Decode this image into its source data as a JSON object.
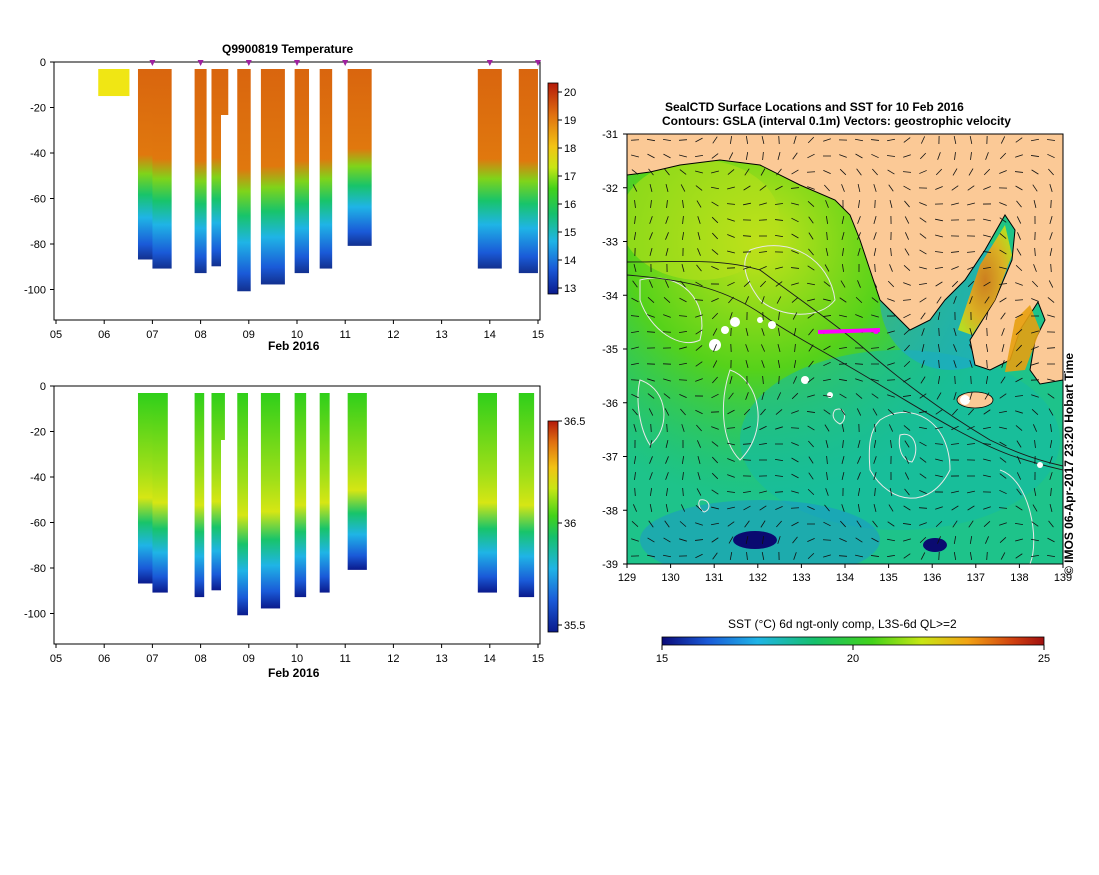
{
  "left_top": {
    "title": "Q9900819  Temperature",
    "xaxis_label": "Feb 2016",
    "x_ticks": [
      "05",
      "06",
      "07",
      "08",
      "09",
      "10",
      "11",
      "12",
      "13",
      "14",
      "15"
    ],
    "y_ticks": [
      "0",
      "-20",
      "-40",
      "-60",
      "-80",
      "-100"
    ],
    "colorbar_ticks": [
      "20",
      "19",
      "18",
      "17",
      "16",
      "15",
      "14",
      "13"
    ]
  },
  "left_bottom": {
    "title": "",
    "xaxis_label": "Feb 2016",
    "x_ticks": [
      "05",
      "06",
      "07",
      "08",
      "09",
      "10",
      "11",
      "12",
      "13",
      "14",
      "15"
    ],
    "y_ticks": [
      "0",
      "-20",
      "-40",
      "-60",
      "-80",
      "-100"
    ],
    "colorbar_ticks": [
      "36.5",
      "36",
      "35.5"
    ]
  },
  "map": {
    "title1": "SealCTD Surface Locations and SST for 10 Feb 2016",
    "title2": "Contours: GSLA (interval 0.1m) Vectors: geostrophic velocity",
    "x_ticks": [
      "129",
      "130",
      "131",
      "132",
      "133",
      "134",
      "135",
      "136",
      "137",
      "138",
      "139"
    ],
    "y_ticks": [
      "-31",
      "-32",
      "-33",
      "-34",
      "-35",
      "-36",
      "-37",
      "-38",
      "-39"
    ],
    "colorbar_label": "SST (°C) 6d ngt-only comp, L3S-6d QL>=2",
    "colorbar_ticks": [
      "15",
      "20",
      "25"
    ],
    "credit": "© IMOS 06-Apr-2017 23:20 Hobart Time"
  },
  "chart_data": [
    {
      "type": "heatmap",
      "title": "Q9900819  Temperature",
      "xlabel": "Feb 2016",
      "ylabel": "",
      "xlim": [
        5,
        15.05
      ],
      "ylim": [
        -110,
        0
      ],
      "colorbar_range": [
        12.8,
        20.3
      ],
      "profiles_depth_m": [
        {
          "day": 6.2,
          "max_depth": -15,
          "surface": 17.8,
          "bottom": 17.8
        },
        {
          "day": 6.9,
          "max_depth": -87,
          "surface": 19.3,
          "bottom": 13.0
        },
        {
          "day": 7.2,
          "max_depth": -91,
          "surface": 19.4,
          "bottom": 14.6
        },
        {
          "day": 8.0,
          "max_depth": -93,
          "surface": 19.4,
          "bottom": 15.3
        },
        {
          "day": 8.4,
          "max_depth": -90,
          "surface": 19.4,
          "bottom": 15.0
        },
        {
          "day": 8.9,
          "max_depth": -101,
          "surface": 19.4,
          "bottom": 15.2
        },
        {
          "day": 9.5,
          "max_depth": -98,
          "surface": 19.4,
          "bottom": 15.0
        },
        {
          "day": 10.1,
          "max_depth": -93,
          "surface": 19.4,
          "bottom": 15.3
        },
        {
          "day": 10.6,
          "max_depth": -91,
          "surface": 19.3,
          "bottom": 15.3
        },
        {
          "day": 11.3,
          "max_depth": -81,
          "surface": 18.4,
          "bottom": 14.3
        },
        {
          "day": 14.0,
          "max_depth": -91,
          "surface": 19.4,
          "bottom": 14.6
        },
        {
          "day": 14.8,
          "max_depth": -93,
          "surface": 19.4,
          "bottom": 15.0
        }
      ]
    },
    {
      "type": "heatmap",
      "title": "",
      "xlabel": "Feb 2016",
      "ylabel": "",
      "xlim": [
        5,
        15.05
      ],
      "ylim": [
        -110,
        0
      ],
      "colorbar_range": [
        35.45,
        36.55
      ]
    },
    {
      "type": "heatmap",
      "title": "SealCTD Surface Locations and SST for 10 Feb 2016",
      "subtitle": "Contours: GSLA (interval 0.1m) Vectors: geostrophic velocity",
      "xlabel": "",
      "ylabel": "",
      "xlim": [
        129,
        139
      ],
      "ylim": [
        -39,
        -31
      ],
      "colorbar_range": [
        15,
        25
      ],
      "colorbar_label": "SST (°C) 6d ngt-only comp, L3S-6d QL>=2",
      "seal_surface_locations_lon_lat": [
        [
          133.9,
          -34.7
        ],
        [
          134.2,
          -34.7
        ],
        [
          134.5,
          -34.7
        ],
        [
          134.8,
          -34.6
        ]
      ]
    }
  ]
}
